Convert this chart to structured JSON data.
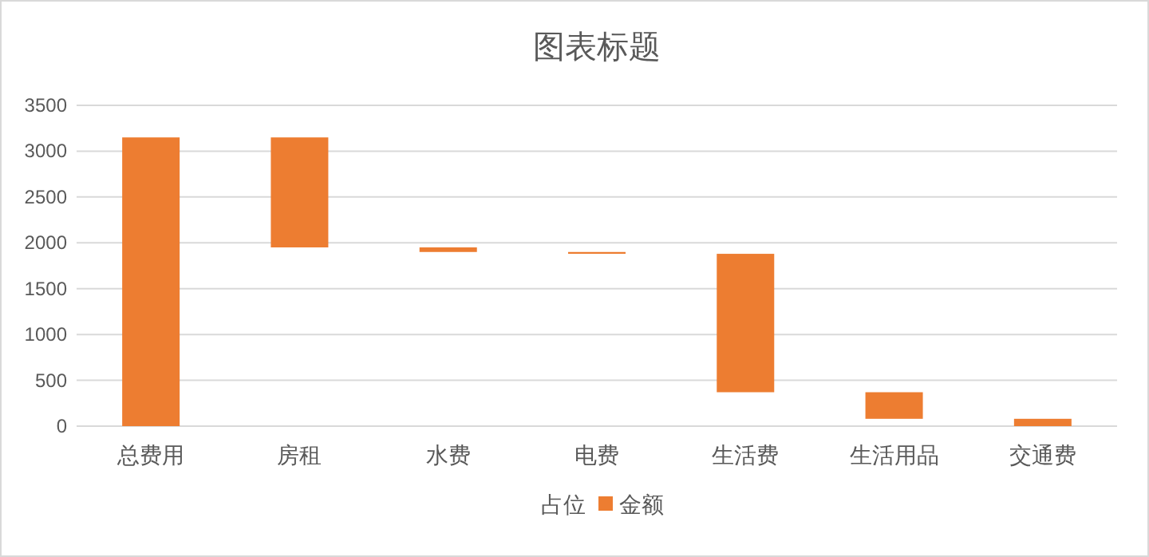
{
  "chart_data": {
    "type": "bar",
    "title": "图表标题",
    "legend_title": "占位",
    "categories": [
      "总费用",
      "房租",
      "水费",
      "电费",
      "生活费",
      "生活用品",
      "交通费"
    ],
    "series": [
      {
        "name": "金额",
        "color": "#ed7d31",
        "base": [
          0,
          1950,
          1900,
          1880,
          370,
          80,
          0
        ],
        "values": [
          3150,
          1200,
          50,
          20,
          1510,
          290,
          80
        ]
      }
    ],
    "ylim": [
      0,
      3500
    ],
    "yticks": [
      0,
      500,
      1000,
      1500,
      2000,
      2500,
      3000,
      3500
    ],
    "grid": "y",
    "legend": "bottom"
  }
}
